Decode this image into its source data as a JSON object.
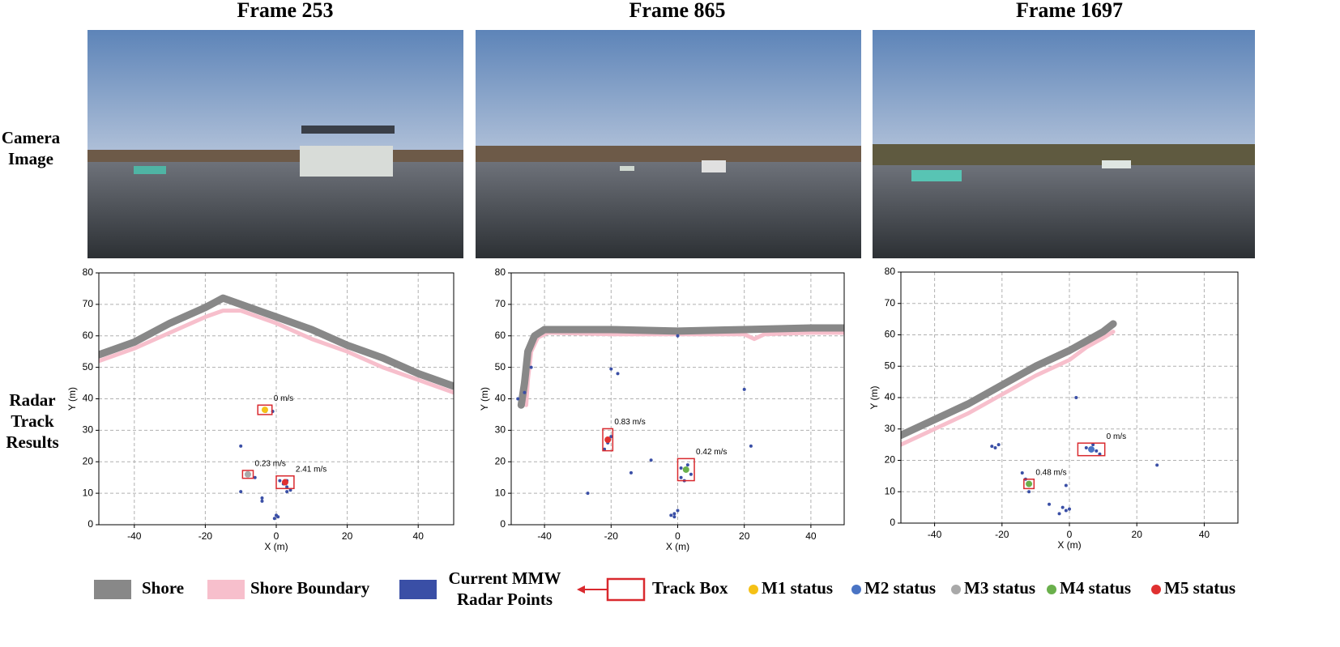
{
  "column_titles": [
    "Frame 253",
    "Frame 865",
    "Frame 1697"
  ],
  "row_labels": [
    [
      "Camera",
      "Image"
    ],
    [
      "Radar",
      "Track",
      "Results"
    ]
  ],
  "chart_data": [
    {
      "type": "scatter",
      "xlabel": "X (m)",
      "ylabel": "Y (m)",
      "xlim": [
        -50,
        50
      ],
      "ylim": [
        0,
        80
      ],
      "xticks": [
        -40,
        -20,
        0,
        20,
        40
      ],
      "yticks": [
        0,
        10,
        20,
        30,
        40,
        50,
        60,
        70,
        80
      ],
      "grid": true,
      "shore": {
        "x": [
          -50,
          -40,
          -30,
          -20,
          -15,
          -10,
          0,
          10,
          20,
          30,
          40,
          50
        ],
        "y": [
          54,
          58,
          64,
          69,
          72,
          70,
          66,
          62,
          57,
          53,
          48,
          44
        ]
      },
      "boundary": {
        "x": [
          -50,
          -40,
          -30,
          -20,
          -15,
          -10,
          0,
          10,
          20,
          30,
          40,
          50
        ],
        "y": [
          52,
          56,
          61,
          66,
          68,
          68,
          64,
          59,
          55,
          50,
          46,
          42
        ]
      },
      "points": {
        "x": [
          -10,
          -10,
          -4,
          -4,
          0,
          0.5,
          -0.5,
          2,
          3,
          4,
          3,
          1,
          -6,
          -3,
          -1,
          3
        ],
        "y": [
          25,
          10.5,
          8.5,
          7.5,
          3,
          2.5,
          2,
          13,
          12,
          11,
          14,
          14,
          15,
          36,
          36,
          10.5
        ]
      },
      "tracks": [
        {
          "x": -3.2,
          "y": 36.5,
          "width": 4,
          "height": 3,
          "color": "#f5c116",
          "label": "0 m/s"
        },
        {
          "x": -8,
          "y": 16,
          "width": 3,
          "height": 2.5,
          "color": "#a9a9a9",
          "label": "0.23 m/s"
        },
        {
          "x": 2.5,
          "y": 13.5,
          "width": 5,
          "height": 4,
          "color": "#e03030",
          "label": "2.41 m/s"
        }
      ]
    },
    {
      "type": "scatter",
      "xlabel": "X (m)",
      "ylabel": "Y (m)",
      "xlim": [
        -50,
        50
      ],
      "ylim": [
        0,
        80
      ],
      "xticks": [
        -40,
        -20,
        0,
        20,
        40
      ],
      "yticks": [
        0,
        10,
        20,
        30,
        40,
        50,
        60,
        70,
        80
      ],
      "grid": true,
      "shore": {
        "x": [
          -47,
          -46,
          -45,
          -43,
          -40,
          -20,
          0,
          20,
          40,
          50
        ],
        "y": [
          38,
          45,
          55,
          60,
          62,
          62,
          61.5,
          62,
          62.5,
          62.5
        ]
      },
      "boundary": {
        "x": [
          -45.5,
          -45,
          -44,
          -42,
          -39,
          -20,
          0,
          20,
          23,
          26,
          40,
          50
        ],
        "y": [
          38,
          46,
          55,
          59.5,
          61,
          60.5,
          60.5,
          60.5,
          59,
          60.5,
          61,
          61
        ]
      },
      "points": {
        "x": [
          -20,
          -18,
          20,
          22,
          -14,
          -8,
          -27,
          -2,
          -1,
          0,
          -1,
          0,
          -21,
          -20,
          -22,
          1,
          3,
          4,
          1,
          2,
          -46,
          -48,
          -44
        ],
        "y": [
          49.5,
          48,
          43,
          25,
          16.5,
          20.5,
          10,
          3,
          3.5,
          4.5,
          2.5,
          60,
          26,
          28,
          24,
          15,
          19,
          16,
          18,
          14,
          42,
          40,
          50
        ]
      },
      "tracks": [
        {
          "x": -21,
          "y": 27,
          "width": 3,
          "height": 7,
          "color": "#e03030",
          "label": "0.83 m/s"
        },
        {
          "x": 2.5,
          "y": 17.5,
          "width": 5,
          "height": 7,
          "color": "#6ab04c",
          "label": "0.42 m/s"
        }
      ]
    },
    {
      "type": "scatter",
      "xlabel": "X (m)",
      "ylabel": "Y (m)",
      "xlim": [
        -50,
        50
      ],
      "ylim": [
        0,
        80
      ],
      "xticks": [
        -40,
        -20,
        0,
        20,
        40
      ],
      "yticks": [
        0,
        10,
        20,
        30,
        40,
        50,
        60,
        70,
        80
      ],
      "grid": true,
      "shore": {
        "x": [
          -50,
          -40,
          -30,
          -20,
          -10,
          0,
          5,
          10,
          13
        ],
        "y": [
          28,
          33,
          38,
          44,
          50,
          55,
          58,
          61,
          63.5
        ]
      },
      "boundary": {
        "x": [
          -50,
          -40,
          -30,
          -20,
          -10,
          0,
          5,
          10,
          13
        ],
        "y": [
          25,
          30,
          35,
          41,
          47,
          52,
          56,
          59,
          61
        ]
      },
      "points": {
        "x": [
          -22,
          -21,
          -23,
          2,
          26,
          -1,
          -2,
          -1,
          0,
          -3,
          -6,
          -14,
          -12,
          5,
          8,
          7,
          9,
          -13
        ],
        "y": [
          24,
          25,
          24.5,
          40,
          18.5,
          12,
          5,
          4,
          4.5,
          3,
          6,
          16,
          10,
          24,
          23,
          25,
          22,
          14
        ]
      },
      "tracks": [
        {
          "x": 6.5,
          "y": 23.5,
          "width": 8,
          "height": 4,
          "color": "#4a74c4",
          "label": "0 m/s"
        },
        {
          "x": -12,
          "y": 12.5,
          "width": 3,
          "height": 3,
          "color": "#6ab04c",
          "label": "0.48 m/s"
        }
      ]
    }
  ],
  "legend": {
    "shore": {
      "label": "Shore",
      "color": "#888888"
    },
    "boundary": {
      "label": "Shore Boundary",
      "color": "#f7bfcc"
    },
    "points": {
      "label": [
        "Current MMW",
        "Radar Points"
      ],
      "color": "#3a4fa6"
    },
    "track": {
      "label": "Track Box",
      "color": "#d9292e"
    },
    "status": [
      {
        "label": "M1 status",
        "color": "#f5c116"
      },
      {
        "label": "M2 status",
        "color": "#4a74c4"
      },
      {
        "label": "M3 status",
        "color": "#a9a9a9"
      },
      {
        "label": "M4 status",
        "color": "#6ab04c"
      },
      {
        "label": "M5 status",
        "color": "#e03030"
      }
    ]
  }
}
